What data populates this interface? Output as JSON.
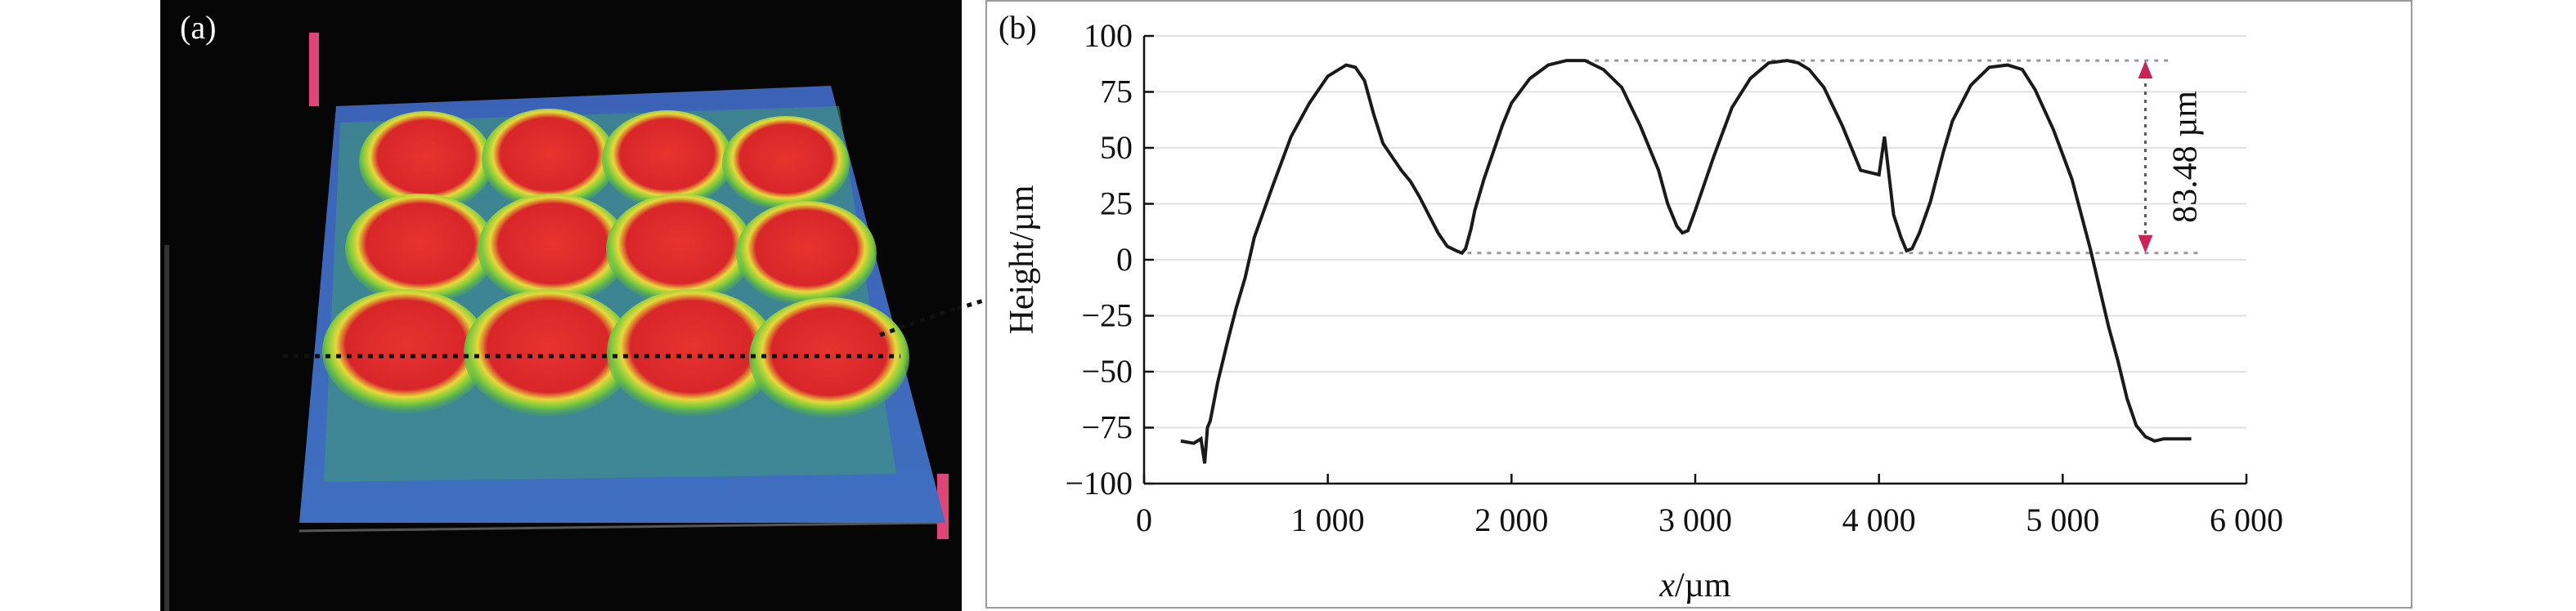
{
  "figure": {
    "panel_a": {
      "label": "(a)"
    },
    "panel_b": {
      "label": "(b)"
    }
  },
  "colors": {
    "surface_base": "#3a5fb0",
    "lens_red": "#e02a2a",
    "lens_green": "#6cc23a",
    "lens_yellow": "#e8e23a",
    "profile_line": "#1a1a1a",
    "annotation_arrow": "#cc2255",
    "reference_line": "#999999"
  },
  "chart_data": {
    "type": "line",
    "title": "",
    "xlabel_italic": "x",
    "xlabel_unit": "/µm",
    "ylabel": "Height/µm",
    "xlim": [
      0,
      6000
    ],
    "ylim": [
      -100,
      100
    ],
    "x_ticks": [
      0,
      1000,
      2000,
      3000,
      4000,
      5000,
      6000
    ],
    "x_tick_labels": [
      "0",
      "1 000",
      "2 000",
      "3 000",
      "4 000",
      "5 000",
      "6 000"
    ],
    "y_ticks": [
      -100,
      -75,
      -50,
      -25,
      0,
      25,
      50,
      75,
      100
    ],
    "y_tick_labels": [
      "−100",
      "−75",
      "−50",
      "−25",
      "0",
      "25",
      "50",
      "75",
      "100"
    ],
    "grid": "horizontal",
    "series": [
      {
        "x": [
          200,
          270,
          310,
          330,
          345,
          360,
          400,
          450,
          500,
          550,
          600,
          700,
          800,
          900,
          1000,
          1100,
          1150,
          1200,
          1250,
          1300,
          1350,
          1400,
          1450,
          1500,
          1550,
          1600,
          1650,
          1700,
          1730,
          1750,
          1780,
          1800,
          1850,
          1900,
          1950,
          2000,
          2100,
          2200,
          2300,
          2350,
          2400,
          2500,
          2600,
          2700,
          2800,
          2850,
          2900,
          2930,
          2960,
          3000,
          3100,
          3200,
          3300,
          3400,
          3500,
          3560,
          3620,
          3700,
          3800,
          3900,
          4000,
          4030,
          4080,
          4120,
          4150,
          4180,
          4220,
          4280,
          4350,
          4400,
          4500,
          4600,
          4700,
          4780,
          4850,
          4950,
          5050,
          5150,
          5250,
          5300,
          5350,
          5400,
          5450,
          5500,
          5550,
          5600,
          5650,
          5700
        ],
        "y": [
          -81,
          -82,
          -80,
          -91,
          -75,
          -72,
          -55,
          -38,
          -22,
          -8,
          10,
          33,
          55,
          70,
          82,
          87,
          86,
          80,
          65,
          52,
          46,
          40,
          35,
          28,
          20,
          12,
          6,
          4,
          3,
          5,
          14,
          22,
          36,
          48,
          60,
          70,
          81,
          87,
          89,
          89,
          89,
          85,
          77,
          60,
          40,
          25,
          15,
          12,
          13,
          22,
          46,
          68,
          81,
          88,
          89,
          88,
          85,
          77,
          60,
          40,
          38,
          55,
          20,
          10,
          4,
          5,
          12,
          26,
          48,
          62,
          78,
          86,
          87,
          85,
          76,
          58,
          36,
          5,
          -30,
          -45,
          -62,
          -74,
          -79,
          -81,
          -80,
          -80,
          -80,
          -80
        ]
      }
    ],
    "annotations": [
      {
        "text": "83.48 µm",
        "from_y": 3,
        "to_y": 89
      }
    ]
  }
}
